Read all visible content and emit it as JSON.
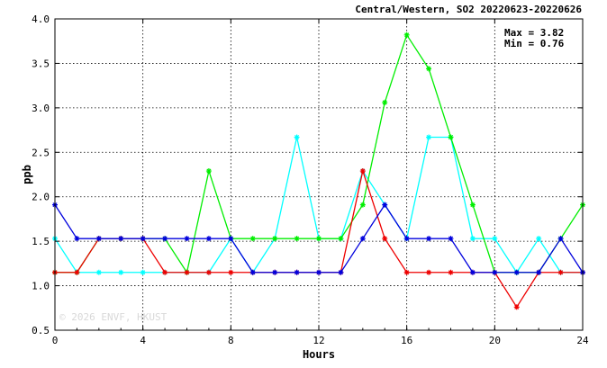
{
  "chart_data": {
    "type": "line",
    "title": "Central/Western, SO2 20220623-20220626",
    "xlabel": "Hours",
    "ylabel": "ppb",
    "xlim": [
      0,
      24
    ],
    "ylim": [
      0.5,
      4.0
    ],
    "x_ticks": [
      "0",
      "4",
      "8",
      "12",
      "16",
      "20",
      "24"
    ],
    "y_ticks": [
      "0.5",
      "1.0",
      "1.5",
      "2.0",
      "2.5",
      "3.0",
      "3.5",
      "4.0"
    ],
    "grid": true,
    "max_label": "Max = 3.82",
    "min_label": "Min = 0.76",
    "watermark": "© 2026 ENVF, HKUST",
    "x": [
      0,
      1,
      2,
      3,
      4,
      5,
      6,
      7,
      8,
      9,
      10,
      11,
      12,
      13,
      14,
      15,
      16,
      17,
      18,
      19,
      20,
      21,
      22,
      23,
      24
    ],
    "series": [
      {
        "color": "#00ffff",
        "values": [
          1.53,
          1.15,
          1.15,
          1.15,
          1.15,
          1.15,
          1.15,
          1.15,
          1.53,
          1.15,
          1.53,
          2.67,
          1.53,
          1.53,
          2.29,
          1.91,
          1.53,
          2.67,
          2.67,
          1.53,
          1.53,
          1.15,
          1.53,
          1.15,
          1.15
        ]
      },
      {
        "color": "#00ee00",
        "values": [
          1.15,
          1.15,
          1.53,
          1.53,
          1.53,
          1.53,
          1.15,
          2.29,
          1.53,
          1.53,
          1.53,
          1.53,
          1.53,
          1.53,
          1.91,
          3.06,
          3.82,
          3.44,
          2.67,
          1.91,
          1.15,
          1.15,
          1.15,
          1.53,
          1.91
        ]
      },
      {
        "color": "#ee0000",
        "values": [
          1.15,
          1.15,
          1.53,
          1.53,
          1.53,
          1.15,
          1.15,
          1.15,
          1.15,
          1.15,
          1.15,
          1.15,
          1.15,
          1.15,
          2.29,
          1.53,
          1.15,
          1.15,
          1.15,
          1.15,
          1.15,
          0.76,
          1.15,
          1.15,
          1.15
        ]
      },
      {
        "color": "#0000dd",
        "values": [
          1.91,
          1.53,
          1.53,
          1.53,
          1.53,
          1.53,
          1.53,
          1.53,
          1.53,
          1.15,
          1.15,
          1.15,
          1.15,
          1.15,
          1.53,
          1.91,
          1.53,
          1.53,
          1.53,
          1.15,
          1.15,
          1.15,
          1.15,
          1.53,
          1.15
        ]
      }
    ]
  }
}
